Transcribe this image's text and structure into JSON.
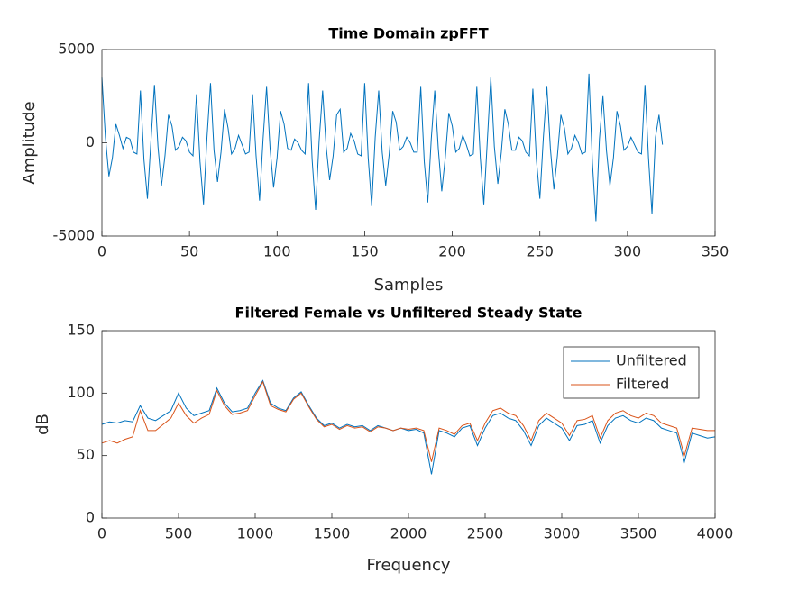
{
  "chart_data": [
    {
      "type": "line",
      "title": "Time Domain zpFFT",
      "x_label": "Samples",
      "y_label": "Amplitude",
      "color": "#0072BD",
      "x": [
        0,
        2,
        4,
        6,
        8,
        10,
        12,
        14,
        16,
        18,
        20,
        22,
        24,
        26,
        28,
        30,
        32,
        34,
        36,
        38,
        40,
        42,
        44,
        46,
        48,
        50,
        52,
        54,
        56,
        58,
        60,
        62,
        64,
        66,
        68,
        70,
        72,
        74,
        76,
        78,
        80,
        82,
        84,
        86,
        88,
        90,
        92,
        94,
        96,
        98,
        100,
        102,
        104,
        106,
        108,
        110,
        112,
        114,
        116,
        118,
        120,
        122,
        124,
        126,
        128,
        130,
        132,
        134,
        136,
        138,
        140,
        142,
        144,
        146,
        148,
        150,
        152,
        154,
        156,
        158,
        160,
        162,
        164,
        166,
        168,
        170,
        172,
        174,
        176,
        178,
        180,
        182,
        184,
        186,
        188,
        190,
        192,
        194,
        196,
        198,
        200,
        202,
        204,
        206,
        208,
        210,
        212,
        214,
        216,
        218,
        220,
        222,
        224,
        226,
        228,
        230,
        232,
        234,
        236,
        238,
        240,
        242,
        244,
        246,
        248,
        250,
        252,
        254,
        256,
        258,
        260,
        262,
        264,
        266,
        268,
        270,
        272,
        274,
        276,
        278,
        280,
        282,
        284,
        286,
        288,
        290,
        292,
        294,
        296,
        298,
        300,
        302,
        304,
        306,
        308,
        310,
        312,
        314,
        316,
        318,
        320
      ],
      "values": [
        3500,
        300,
        -1800,
        -800,
        1000,
        400,
        -300,
        300,
        200,
        -500,
        -600,
        2800,
        -900,
        -3000,
        100,
        3100,
        -200,
        -2300,
        -700,
        1500,
        900,
        -400,
        -200,
        300,
        100,
        -500,
        -700,
        2600,
        -1000,
        -3300,
        300,
        3200,
        -400,
        -2100,
        -500,
        1800,
        800,
        -600,
        -300,
        400,
        -100,
        -600,
        -500,
        2600,
        -700,
        -3100,
        200,
        3000,
        -300,
        -2400,
        -800,
        1700,
        1000,
        -300,
        -400,
        200,
        0,
        -400,
        -600,
        3200,
        -900,
        -3600,
        100,
        2800,
        -200,
        -2000,
        -700,
        1500,
        1800,
        -500,
        -300,
        500,
        100,
        -600,
        -700,
        3200,
        -800,
        -3400,
        300,
        2800,
        -500,
        -2300,
        -600,
        1700,
        1100,
        -400,
        -200,
        300,
        0,
        -500,
        -500,
        3000,
        -1000,
        -3200,
        200,
        2800,
        -300,
        -2600,
        -800,
        1600,
        900,
        -500,
        -300,
        400,
        -100,
        -700,
        -600,
        3000,
        -800,
        -3300,
        100,
        3500,
        -200,
        -2200,
        -500,
        1800,
        1000,
        -400,
        -400,
        300,
        100,
        -500,
        -700,
        2900,
        -900,
        -3000,
        300,
        3000,
        -300,
        -2500,
        -700,
        1500,
        800,
        -600,
        -300,
        400,
        0,
        -600,
        -500,
        3700,
        -1100,
        -4200,
        200,
        2500,
        -400,
        -2300,
        -800,
        1700,
        900,
        -400,
        -200,
        300,
        -100,
        -500,
        -600,
        3100,
        -800,
        -3800,
        300,
        1500,
        -100
      ],
      "xlim": [
        0,
        350
      ],
      "xticks": [
        0,
        50,
        100,
        150,
        200,
        250,
        300,
        350
      ],
      "ylim": [
        -5000,
        5000
      ],
      "yticks": [
        -5000,
        0,
        5000
      ]
    },
    {
      "type": "line",
      "title": "Filtered Female vs Unfiltered Steady State",
      "x_label": "Frequency",
      "y_label": "dB",
      "x": [
        0,
        50,
        100,
        150,
        200,
        250,
        300,
        350,
        400,
        450,
        500,
        550,
        600,
        650,
        700,
        750,
        800,
        850,
        900,
        950,
        1000,
        1050,
        1100,
        1150,
        1200,
        1250,
        1300,
        1350,
        1400,
        1450,
        1500,
        1550,
        1600,
        1650,
        1700,
        1750,
        1800,
        1850,
        1900,
        1950,
        2000,
        2050,
        2100,
        2150,
        2200,
        2250,
        2300,
        2350,
        2400,
        2450,
        2500,
        2550,
        2600,
        2650,
        2700,
        2750,
        2800,
        2850,
        2900,
        2950,
        3000,
        3050,
        3100,
        3150,
        3200,
        3250,
        3300,
        3350,
        3400,
        3450,
        3500,
        3550,
        3600,
        3650,
        3700,
        3750,
        3800,
        3850,
        3900,
        3950,
        4000
      ],
      "series": [
        {
          "name": "Unfiltered",
          "color": "#0072BD",
          "values": [
            75,
            77,
            76,
            78,
            77,
            90,
            80,
            78,
            82,
            86,
            100,
            88,
            82,
            84,
            86,
            104,
            92,
            85,
            86,
            88,
            100,
            110,
            92,
            88,
            86,
            96,
            101,
            90,
            80,
            74,
            76,
            72,
            75,
            73,
            74,
            70,
            74,
            72,
            70,
            72,
            70,
            71,
            68,
            35,
            70,
            68,
            65,
            72,
            74,
            58,
            72,
            82,
            84,
            80,
            78,
            70,
            58,
            74,
            80,
            76,
            72,
            62,
            74,
            75,
            78,
            60,
            74,
            80,
            82,
            78,
            76,
            80,
            78,
            72,
            70,
            68,
            45,
            68,
            66,
            64,
            65
          ]
        },
        {
          "name": "Filtered",
          "color": "#D95319",
          "values": [
            60,
            62,
            60,
            63,
            65,
            86,
            70,
            70,
            75,
            80,
            92,
            82,
            76,
            80,
            83,
            102,
            90,
            83,
            84,
            86,
            98,
            109,
            90,
            87,
            85,
            95,
            100,
            89,
            79,
            73,
            75,
            71,
            74,
            72,
            73,
            69,
            73,
            72,
            70,
            72,
            71,
            72,
            70,
            45,
            72,
            70,
            67,
            74,
            76,
            62,
            76,
            86,
            88,
            84,
            82,
            74,
            62,
            78,
            84,
            80,
            76,
            66,
            78,
            79,
            82,
            64,
            78,
            84,
            86,
            82,
            80,
            84,
            82,
            76,
            74,
            72,
            50,
            72,
            71,
            70,
            70
          ]
        }
      ],
      "xlim": [
        0,
        4000
      ],
      "xticks": [
        0,
        500,
        1000,
        1500,
        2000,
        2500,
        3000,
        3500,
        4000
      ],
      "ylim": [
        0,
        150
      ],
      "yticks": [
        0,
        50,
        100,
        150
      ],
      "legend": "northeast"
    }
  ]
}
